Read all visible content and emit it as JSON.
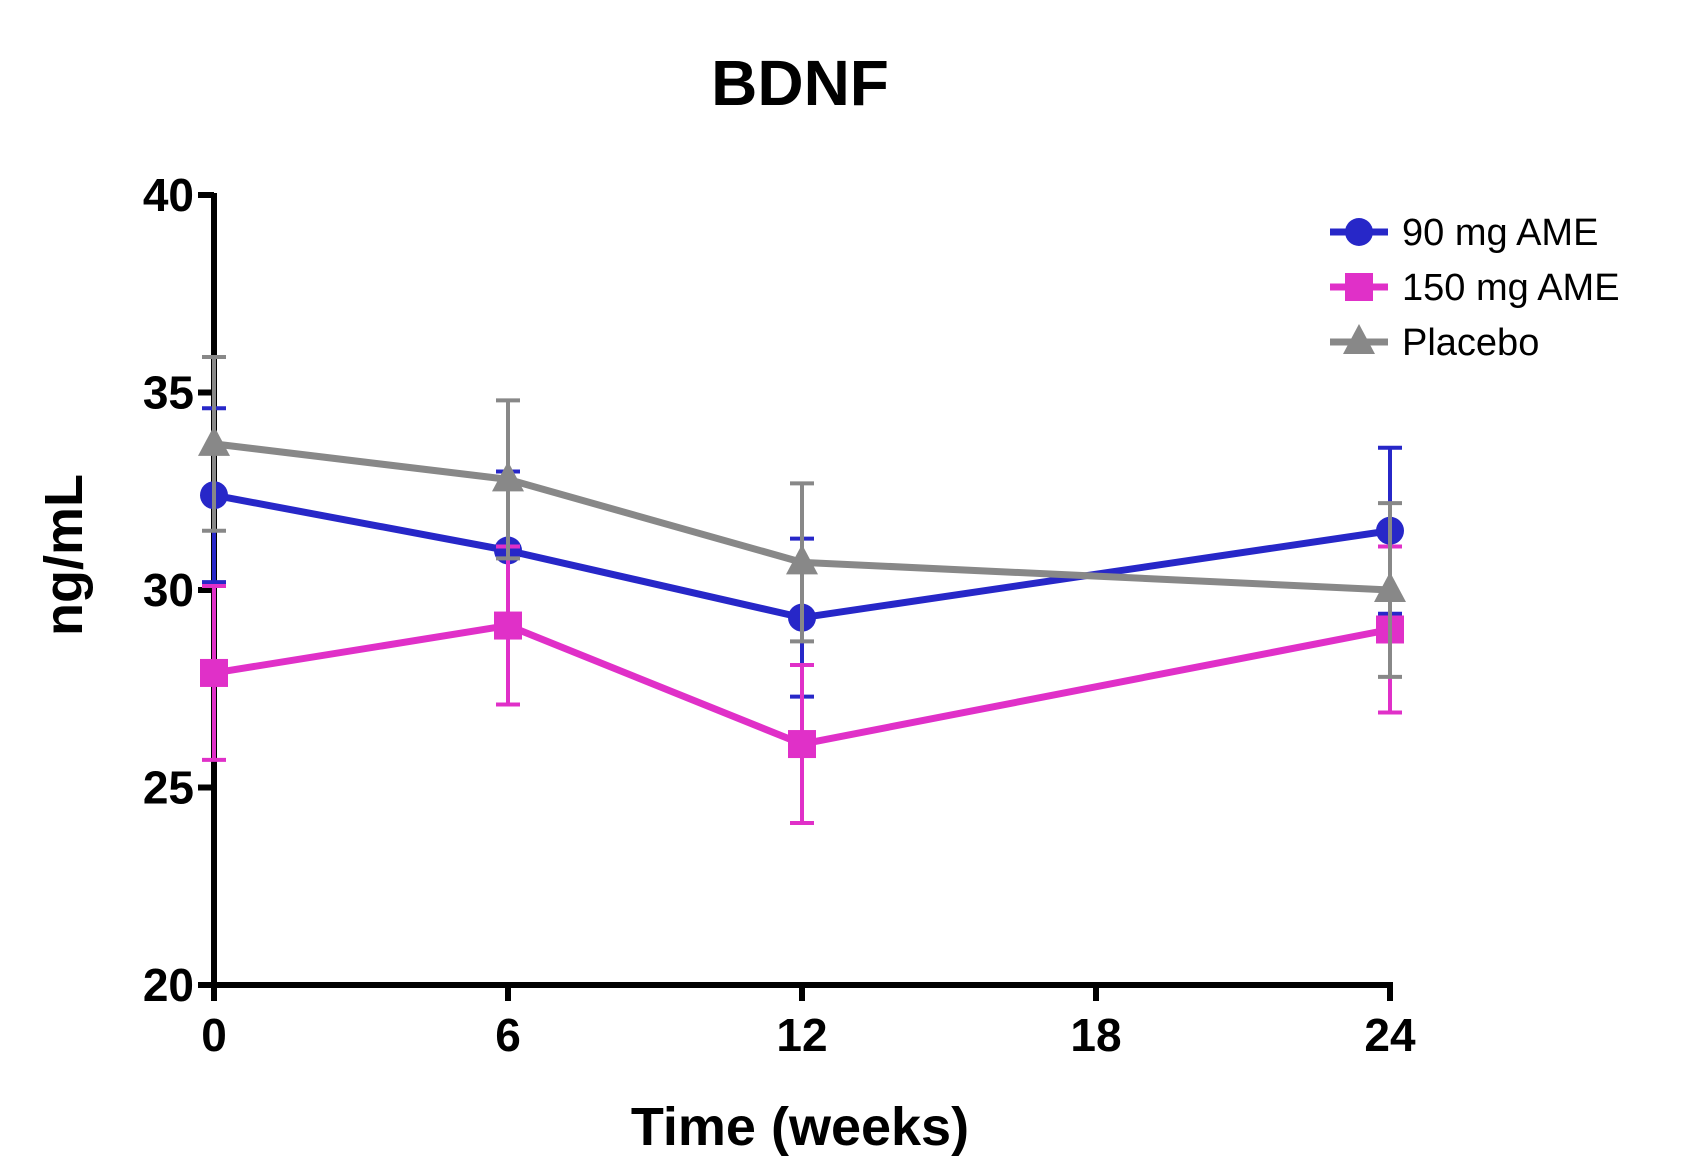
{
  "chart_data": {
    "type": "line",
    "title": "BDNF",
    "xlabel": "Time (weeks)",
    "ylabel": "ng/mL",
    "xlim": [
      0,
      24
    ],
    "ylim": [
      20,
      40
    ],
    "x_ticks": [
      0,
      6,
      12,
      18,
      24
    ],
    "y_ticks": [
      20,
      25,
      30,
      35,
      40
    ],
    "legend_position": "top-right",
    "grid": false,
    "series": [
      {
        "name": "90 mg AME",
        "color": "#2727c8",
        "marker": "circle",
        "x": [
          0,
          6,
          12,
          24
        ],
        "y": [
          32.4,
          31.0,
          29.3,
          31.5
        ],
        "error": [
          2.2,
          2.0,
          2.0,
          2.1
        ]
      },
      {
        "name": "150 mg AME",
        "color": "#e030c8",
        "marker": "square",
        "x": [
          0,
          6,
          12,
          24
        ],
        "y": [
          27.9,
          29.1,
          26.1,
          29.0
        ],
        "error": [
          2.2,
          2.0,
          2.0,
          2.1
        ]
      },
      {
        "name": "Placebo",
        "color": "#888888",
        "marker": "triangle",
        "x": [
          0,
          6,
          12,
          24
        ],
        "y": [
          33.7,
          32.8,
          30.7,
          30.0
        ],
        "error": [
          2.2,
          2.0,
          2.0,
          2.2
        ]
      }
    ]
  }
}
